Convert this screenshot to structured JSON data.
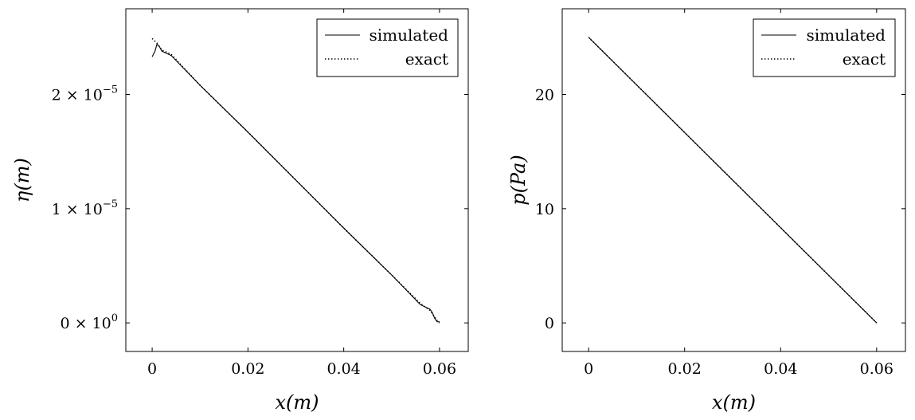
{
  "chart_data": [
    {
      "type": "line",
      "xlabel": "x(m)",
      "ylabel": "η(m)",
      "xlim": [
        -0.0055,
        0.066
      ],
      "ylim": [
        -2.5e-06,
        2.75e-05
      ],
      "x_ticks": [
        0,
        0.02,
        0.04,
        0.06
      ],
      "x_tick_labels": [
        "0",
        "0.02",
        "0.04",
        "0.06"
      ],
      "y_ticks": [
        0,
        1e-05,
        2e-05
      ],
      "y_tick_labels": [
        {
          "mant": "0 × 10",
          "exp": "0"
        },
        {
          "mant": "1 × 10",
          "exp": "−5"
        },
        {
          "mant": "2 × 10",
          "exp": "−5"
        }
      ],
      "grid": false,
      "legend_position": "top-right",
      "series": [
        {
          "name": "simulated",
          "style": "solid",
          "x": [
            0,
            0.0006,
            0.001,
            0.0015,
            0.002,
            0.0025,
            0.003,
            0.004,
            0.01,
            0.02,
            0.03,
            0.04,
            0.05,
            0.056,
            0.057,
            0.058,
            0.0585,
            0.059,
            0.0595,
            0.06
          ],
          "y": [
            2.33e-05,
            2.38e-05,
            2.44e-05,
            2.42e-05,
            2.38e-05,
            2.37e-05,
            2.36e-05,
            2.34e-05,
            2.08e-05,
            1.67e-05,
            1.25e-05,
            8.3e-06,
            4.2e-06,
            1.6e-06,
            1.4e-06,
            1.2e-06,
            9e-07,
            4e-07,
            1e-07,
            1e-07
          ]
        },
        {
          "name": "exact",
          "style": "dotted",
          "x": [
            0,
            0.001,
            0.002,
            0.003,
            0.004,
            0.01,
            0.02,
            0.03,
            0.04,
            0.05,
            0.056,
            0.058,
            0.059,
            0.0595,
            0.06
          ],
          "y": [
            2.49e-05,
            2.45e-05,
            2.39e-05,
            2.37e-05,
            2.35e-05,
            2.08e-05,
            1.67e-05,
            1.25e-05,
            8.3e-06,
            4.2e-06,
            1.7e-06,
            1.1e-06,
            5e-07,
            2e-07,
            0.0
          ]
        }
      ]
    },
    {
      "type": "line",
      "xlabel": "x(m)",
      "ylabel": "p(Pa)",
      "xlim": [
        -0.0055,
        0.066
      ],
      "ylim": [
        -2.5,
        27.5
      ],
      "x_ticks": [
        0,
        0.02,
        0.04,
        0.06
      ],
      "x_tick_labels": [
        "0",
        "0.02",
        "0.04",
        "0.06"
      ],
      "y_ticks": [
        0,
        10,
        20
      ],
      "y_tick_labels": [
        {
          "mant": "0",
          "exp": ""
        },
        {
          "mant": "10",
          "exp": ""
        },
        {
          "mant": "20",
          "exp": ""
        }
      ],
      "grid": false,
      "legend_position": "top-right",
      "series": [
        {
          "name": "simulated",
          "style": "solid",
          "x": [
            0,
            0.06
          ],
          "y": [
            25,
            0
          ]
        },
        {
          "name": "exact",
          "style": "dotted",
          "x": [
            0,
            0.06
          ],
          "y": [
            25,
            0
          ]
        }
      ]
    }
  ]
}
